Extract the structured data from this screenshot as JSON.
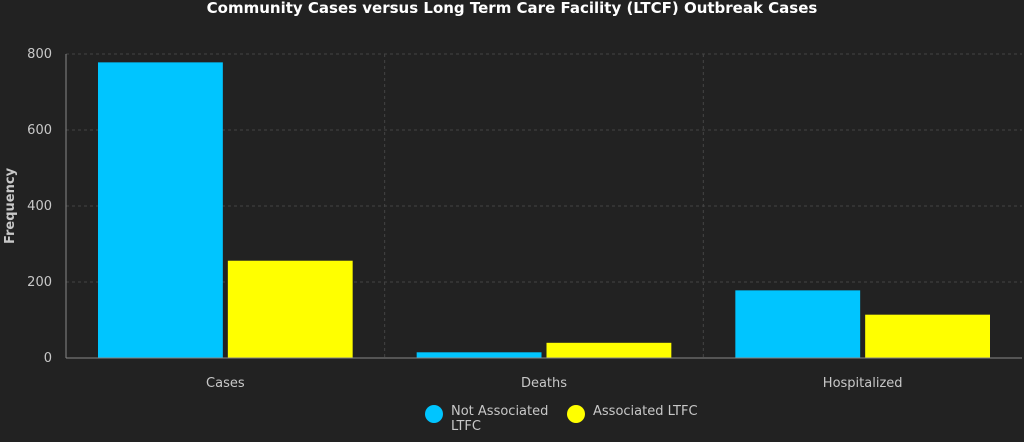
{
  "chart_data": {
    "type": "bar",
    "title": "Community Cases versus Long Term Care Facility (LTCF) Outbreak Cases",
    "xlabel": "",
    "ylabel": "Frequency",
    "categories": [
      "Cases",
      "Deaths",
      "Hospitalized"
    ],
    "series": [
      {
        "name": "Not Associated LTFC",
        "color": "#00c5ff",
        "values": [
          778,
          15,
          178
        ]
      },
      {
        "name": "Associated LTFC",
        "color": "#ffff00",
        "values": [
          256,
          40,
          114
        ]
      }
    ],
    "ylim": [
      0,
      800
    ],
    "yticks": [
      0,
      200,
      400,
      600,
      800
    ],
    "grid": true,
    "legend_position": "bottom-center",
    "colors": {
      "background": "#222222",
      "grid": "#444444",
      "axis": "#888888",
      "text": "#c8c8c8",
      "title": "#ffffff"
    }
  }
}
